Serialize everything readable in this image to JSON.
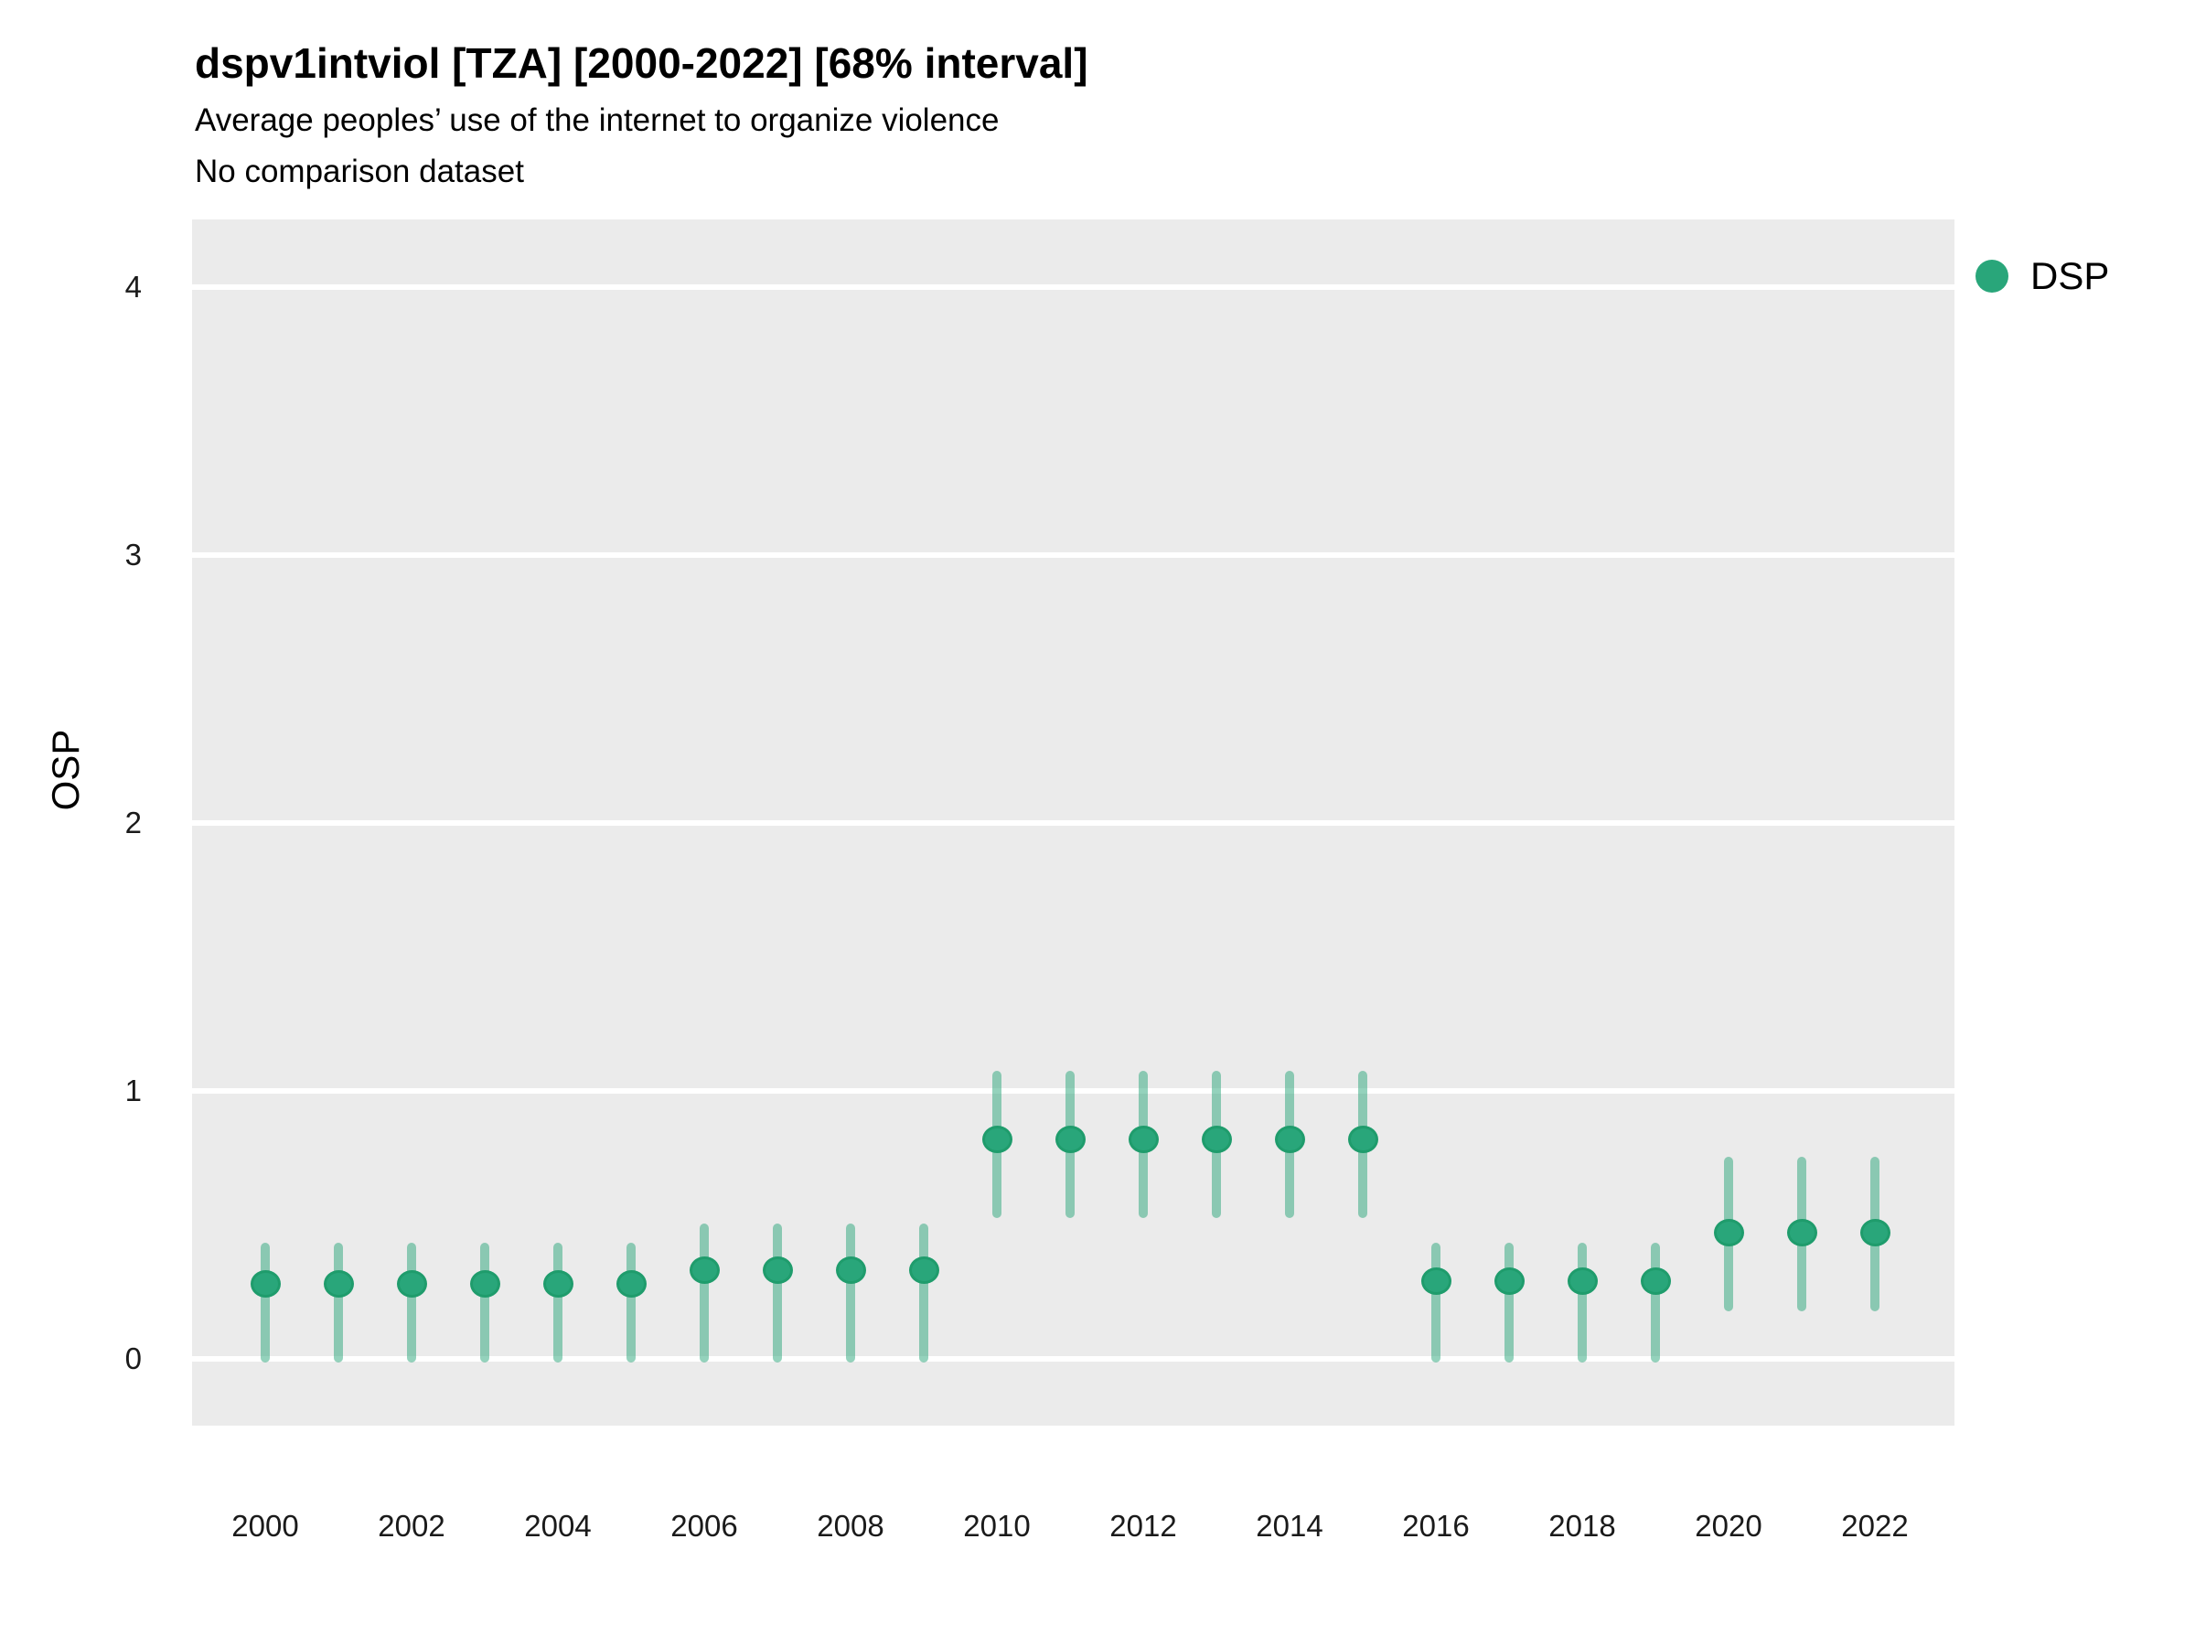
{
  "header": {
    "title": "dspv1intviol [TZA] [2000-2022] [68% interval]",
    "subtitle": "Average peoples’ use of the internet to organize violence",
    "note": "No comparison dataset"
  },
  "y_axis_title": "OSP",
  "legend": {
    "label": "DSP",
    "marker_icon": "circle-icon",
    "color": "#29a67a"
  },
  "colors": {
    "point_fill": "#29a67a",
    "point_stroke": "#1f9c6c",
    "interval_line": "rgba(41,166,122,0.5)",
    "plot_background": "#ebebeb",
    "gridline": "#ffffff",
    "text": "#000000"
  },
  "chart_data": {
    "type": "pointrange",
    "title": "dspv1intviol [TZA] [2000-2022] [68% interval]",
    "subtitle": "Average peoples’ use of the internet to organize violence",
    "note": "No comparison dataset",
    "interval_level": "68%",
    "xlabel": "",
    "ylabel": "OSP",
    "grid": true,
    "legend_position": "right-top",
    "legend_entries": [
      "DSP"
    ],
    "xlim": [
      1999,
      2023
    ],
    "ylim": [
      -0.25,
      4.25
    ],
    "xticks": [
      2000,
      2002,
      2004,
      2006,
      2008,
      2010,
      2012,
      2014,
      2016,
      2018,
      2020,
      2022
    ],
    "yticks": [
      0,
      1,
      2,
      3,
      4
    ],
    "series": [
      {
        "name": "DSP",
        "points": [
          {
            "year": 2000,
            "est": 0.28,
            "lo": 0.0,
            "hi": 0.42
          },
          {
            "year": 2001,
            "est": 0.28,
            "lo": 0.0,
            "hi": 0.42
          },
          {
            "year": 2002,
            "est": 0.28,
            "lo": 0.0,
            "hi": 0.42
          },
          {
            "year": 2003,
            "est": 0.28,
            "lo": 0.0,
            "hi": 0.42
          },
          {
            "year": 2004,
            "est": 0.28,
            "lo": 0.0,
            "hi": 0.42
          },
          {
            "year": 2005,
            "est": 0.28,
            "lo": 0.0,
            "hi": 0.42
          },
          {
            "year": 2006,
            "est": 0.33,
            "lo": 0.0,
            "hi": 0.49
          },
          {
            "year": 2007,
            "est": 0.33,
            "lo": 0.0,
            "hi": 0.49
          },
          {
            "year": 2008,
            "est": 0.33,
            "lo": 0.0,
            "hi": 0.49
          },
          {
            "year": 2009,
            "est": 0.33,
            "lo": 0.0,
            "hi": 0.49
          },
          {
            "year": 2010,
            "est": 0.82,
            "lo": 0.54,
            "hi": 1.06
          },
          {
            "year": 2011,
            "est": 0.82,
            "lo": 0.54,
            "hi": 1.06
          },
          {
            "year": 2012,
            "est": 0.82,
            "lo": 0.54,
            "hi": 1.06
          },
          {
            "year": 2013,
            "est": 0.82,
            "lo": 0.54,
            "hi": 1.06
          },
          {
            "year": 2014,
            "est": 0.82,
            "lo": 0.54,
            "hi": 1.06
          },
          {
            "year": 2015,
            "est": 0.82,
            "lo": 0.54,
            "hi": 1.06
          },
          {
            "year": 2016,
            "est": 0.29,
            "lo": 0.0,
            "hi": 0.42
          },
          {
            "year": 2017,
            "est": 0.29,
            "lo": 0.0,
            "hi": 0.42
          },
          {
            "year": 2018,
            "est": 0.29,
            "lo": 0.0,
            "hi": 0.42
          },
          {
            "year": 2019,
            "est": 0.29,
            "lo": 0.0,
            "hi": 0.42
          },
          {
            "year": 2020,
            "est": 0.47,
            "lo": 0.19,
            "hi": 0.74
          },
          {
            "year": 2021,
            "est": 0.47,
            "lo": 0.19,
            "hi": 0.74
          },
          {
            "year": 2022,
            "est": 0.47,
            "lo": 0.19,
            "hi": 0.74
          }
        ]
      }
    ]
  }
}
